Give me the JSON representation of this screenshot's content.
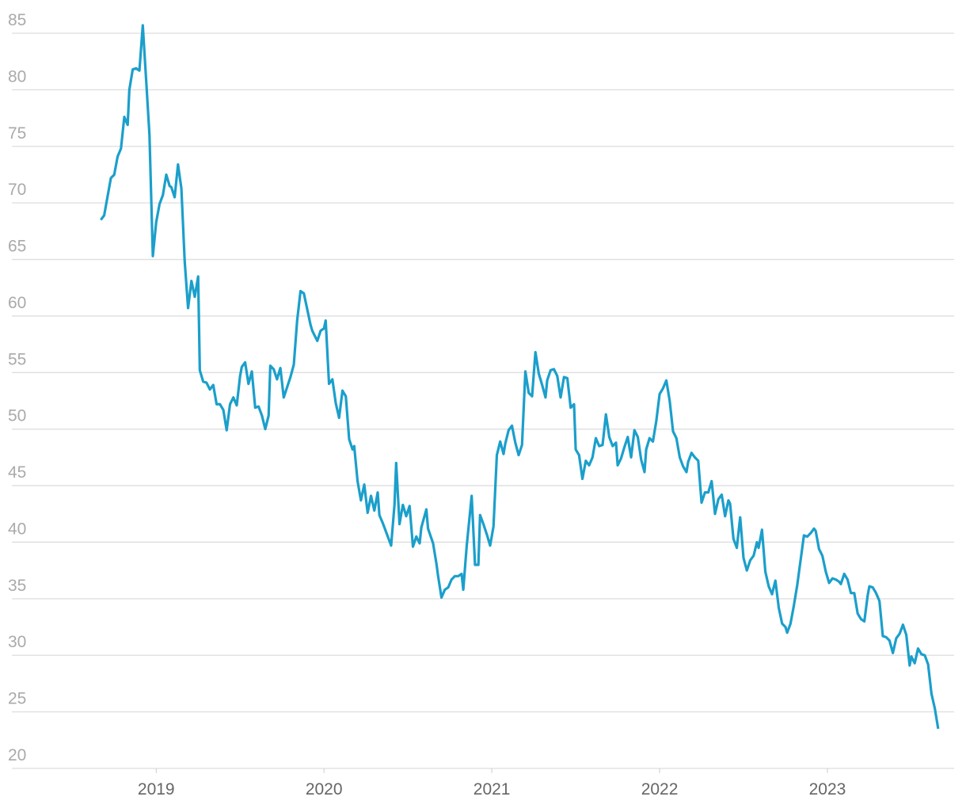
{
  "chart_data": {
    "type": "line",
    "color": "#1b9fcb",
    "grid": true,
    "xlim": [
      2018.14,
      2023.755
    ],
    "xticks": [
      2019,
      2020,
      2021,
      2022,
      2023
    ],
    "ylim": [
      20,
      85
    ],
    "yticks": [
      20,
      25,
      30,
      35,
      40,
      45,
      50,
      55,
      60,
      65,
      70,
      75,
      80,
      85
    ],
    "x": [
      2018.67,
      2018.69,
      2018.73,
      2018.75,
      2018.77,
      2018.79,
      2018.81,
      2018.83,
      2018.84,
      2018.86,
      2018.88,
      2018.9,
      2018.92,
      2018.94,
      2018.96,
      2018.98,
      2019.0,
      2019.02,
      2019.04,
      2019.06,
      2019.08,
      2019.09,
      2019.11,
      2019.13,
      2019.15,
      2019.17,
      2019.19,
      2019.21,
      2019.23,
      2019.25,
      2019.26,
      2019.28,
      2019.3,
      2019.32,
      2019.34,
      2019.36,
      2019.38,
      2019.4,
      2019.42,
      2019.44,
      2019.46,
      2019.48,
      2019.5,
      2019.51,
      2019.53,
      2019.55,
      2019.57,
      2019.59,
      2019.61,
      2019.63,
      2019.65,
      2019.67,
      2019.68,
      2019.7,
      2019.72,
      2019.74,
      2019.76,
      2019.78,
      2019.8,
      2019.82,
      2019.84,
      2019.86,
      2019.88,
      2019.9,
      2019.92,
      2019.93,
      2019.96,
      2019.98,
      2020.0,
      2020.01,
      2020.03,
      2020.05,
      2020.07,
      2020.09,
      2020.11,
      2020.13,
      2020.15,
      2020.17,
      2020.18,
      2020.2,
      2020.22,
      2020.24,
      2020.26,
      2020.28,
      2020.3,
      2020.32,
      2020.33,
      2020.35,
      2020.37,
      2020.4,
      2020.42,
      2020.43,
      2020.45,
      2020.47,
      2020.49,
      2020.51,
      2020.53,
      2020.55,
      2020.57,
      2020.58,
      2020.61,
      2020.62,
      2020.65,
      2020.67,
      2020.68,
      2020.7,
      2020.72,
      2020.74,
      2020.76,
      2020.78,
      2020.8,
      2020.82,
      2020.83,
      2020.85,
      2020.88,
      2020.9,
      2020.92,
      2020.93,
      2020.95,
      2020.97,
      2020.99,
      2021.01,
      2021.03,
      2021.05,
      2021.07,
      2021.08,
      2021.1,
      2021.12,
      2021.14,
      2021.16,
      2021.18,
      2021.2,
      2021.22,
      2021.24,
      2021.26,
      2021.28,
      2021.3,
      2021.32,
      2021.33,
      2021.35,
      2021.37,
      2021.39,
      2021.41,
      2021.43,
      2021.45,
      2021.47,
      2021.49,
      2021.5,
      2021.52,
      2021.54,
      2021.56,
      2021.58,
      2021.6,
      2021.62,
      2021.64,
      2021.66,
      2021.68,
      2021.7,
      2021.72,
      2021.74,
      2021.75,
      2021.77,
      2021.79,
      2021.81,
      2021.83,
      2021.85,
      2021.87,
      2021.89,
      2021.91,
      2021.92,
      2021.94,
      2021.96,
      2021.98,
      2022.0,
      2022.02,
      2022.04,
      2022.06,
      2022.08,
      2022.1,
      2022.12,
      2022.14,
      2022.16,
      2022.17,
      2022.19,
      2022.21,
      2022.23,
      2022.25,
      2022.27,
      2022.29,
      2022.31,
      2022.33,
      2022.35,
      2022.37,
      2022.39,
      2022.41,
      2022.42,
      2022.44,
      2022.46,
      2022.48,
      2022.5,
      2022.52,
      2022.54,
      2022.56,
      2022.58,
      2022.59,
      2022.61,
      2022.63,
      2022.65,
      2022.67,
      2022.69,
      2022.71,
      2022.73,
      2022.75,
      2022.76,
      2022.78,
      2022.8,
      2022.82,
      2022.84,
      2022.86,
      2022.88,
      2022.9,
      2022.92,
      2022.93,
      2022.95,
      2022.97,
      2022.99,
      2023.01,
      2023.03,
      2023.05,
      2023.07,
      2023.08,
      2023.1,
      2023.12,
      2023.14,
      2023.16,
      2023.18,
      2023.2,
      2023.22,
      2023.24,
      2023.25,
      2023.27,
      2023.29,
      2023.31,
      2023.33,
      2023.35,
      2023.37,
      2023.39,
      2023.41,
      2023.43,
      2023.45,
      2023.47,
      2023.49,
      2023.5,
      2023.52,
      2023.54,
      2023.56,
      2023.58,
      2023.6,
      2023.62,
      2023.64,
      2023.66
    ],
    "values": [
      68.5,
      68.9,
      72.2,
      72.5,
      74.1,
      74.8,
      77.6,
      76.9,
      80.0,
      81.8,
      81.9,
      81.7,
      85.7,
      80.9,
      76.0,
      65.3,
      68.3,
      69.9,
      70.7,
      72.5,
      71.5,
      71.4,
      70.5,
      73.4,
      71.3,
      64.8,
      60.7,
      63.1,
      61.7,
      63.5,
      55.2,
      54.2,
      54.1,
      53.5,
      53.9,
      52.2,
      52.2,
      51.7,
      49.9,
      52.2,
      52.8,
      52.1,
      54.7,
      55.5,
      55.9,
      54.0,
      55.1,
      51.9,
      52.0,
      51.2,
      50.0,
      51.2,
      55.6,
      55.3,
      54.4,
      55.4,
      52.8,
      53.7,
      54.6,
      55.7,
      59.6,
      62.2,
      62.0,
      60.6,
      59.2,
      58.7,
      57.8,
      58.7,
      58.9,
      59.6,
      54.0,
      54.4,
      52.3,
      51.0,
      53.4,
      52.9,
      49.1,
      48.2,
      48.5,
      45.4,
      43.7,
      45.1,
      42.6,
      44.1,
      42.8,
      44.4,
      42.4,
      41.7,
      40.9,
      39.7,
      43.3,
      47.0,
      41.6,
      43.3,
      42.3,
      43.2,
      39.6,
      40.5,
      39.9,
      41.3,
      42.9,
      41.2,
      39.9,
      38.1,
      37.0,
      35.1,
      35.8,
      36.0,
      36.7,
      37.0,
      37.0,
      37.2,
      35.8,
      39.6,
      44.1,
      38.0,
      38.0,
      42.4,
      41.6,
      40.7,
      39.7,
      41.4,
      47.7,
      48.9,
      47.8,
      48.7,
      49.9,
      50.3,
      48.8,
      47.7,
      48.6,
      55.1,
      53.2,
      52.9,
      56.8,
      54.9,
      53.9,
      52.8,
      54.3,
      55.2,
      55.3,
      54.7,
      52.8,
      54.6,
      54.5,
      51.9,
      52.2,
      48.2,
      47.7,
      45.6,
      47.2,
      46.8,
      47.5,
      49.2,
      48.5,
      48.6,
      51.3,
      49.3,
      48.5,
      48.8,
      46.8,
      47.4,
      48.4,
      49.3,
      47.5,
      49.9,
      49.3,
      47.3,
      46.2,
      48.2,
      49.2,
      48.9,
      50.7,
      53.1,
      53.6,
      54.3,
      52.5,
      49.8,
      49.2,
      47.5,
      46.7,
      46.2,
      47.1,
      47.9,
      47.5,
      47.2,
      43.5,
      44.4,
      44.4,
      45.4,
      42.5,
      43.8,
      44.2,
      42.3,
      43.7,
      43.4,
      40.3,
      39.5,
      42.2,
      38.6,
      37.5,
      38.4,
      38.8,
      40.0,
      39.5,
      41.1,
      37.4,
      36.1,
      35.4,
      36.6,
      34.2,
      32.8,
      32.5,
      32.0,
      32.8,
      34.4,
      36.2,
      38.4,
      40.6,
      40.5,
      40.8,
      41.2,
      41.0,
      39.4,
      38.8,
      37.4,
      36.4,
      36.8,
      36.7,
      36.5,
      36.3,
      37.2,
      36.7,
      35.5,
      35.5,
      33.7,
      33.2,
      33.0,
      35.3,
      36.1,
      36.0,
      35.5,
      34.8,
      31.7,
      31.6,
      31.3,
      30.2,
      31.5,
      31.9,
      32.7,
      31.8,
      29.1,
      29.9,
      29.3,
      30.6,
      30.1,
      30.0,
      29.2,
      26.6,
      25.3,
      23.5
    ]
  }
}
